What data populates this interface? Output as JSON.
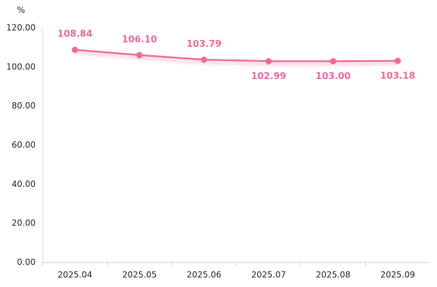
{
  "chart_data": {
    "type": "line",
    "y_unit": "%",
    "categories": [
      "2025.04",
      "2025.05",
      "2025.06",
      "2025.07",
      "2025.08",
      "2025.09"
    ],
    "series": [
      {
        "color": "#ee6a97",
        "values": [
          108.84,
          106.1,
          103.79,
          102.99,
          103.0,
          103.18
        ],
        "value_labels": [
          "108.84",
          "106.10",
          "103.79",
          "102.99",
          "103.00",
          "103.18"
        ]
      }
    ],
    "ylim": [
      0,
      120
    ],
    "yticks": [
      {
        "value": 0,
        "label": "0.00"
      },
      {
        "value": 20,
        "label": "20.00"
      },
      {
        "value": 40,
        "label": "40.00"
      },
      {
        "value": 60,
        "label": "60.00"
      },
      {
        "value": 80,
        "label": "80.00"
      },
      {
        "value": 100,
        "label": "100.00"
      },
      {
        "value": 120,
        "label": "120.00"
      }
    ],
    "grid": false
  }
}
